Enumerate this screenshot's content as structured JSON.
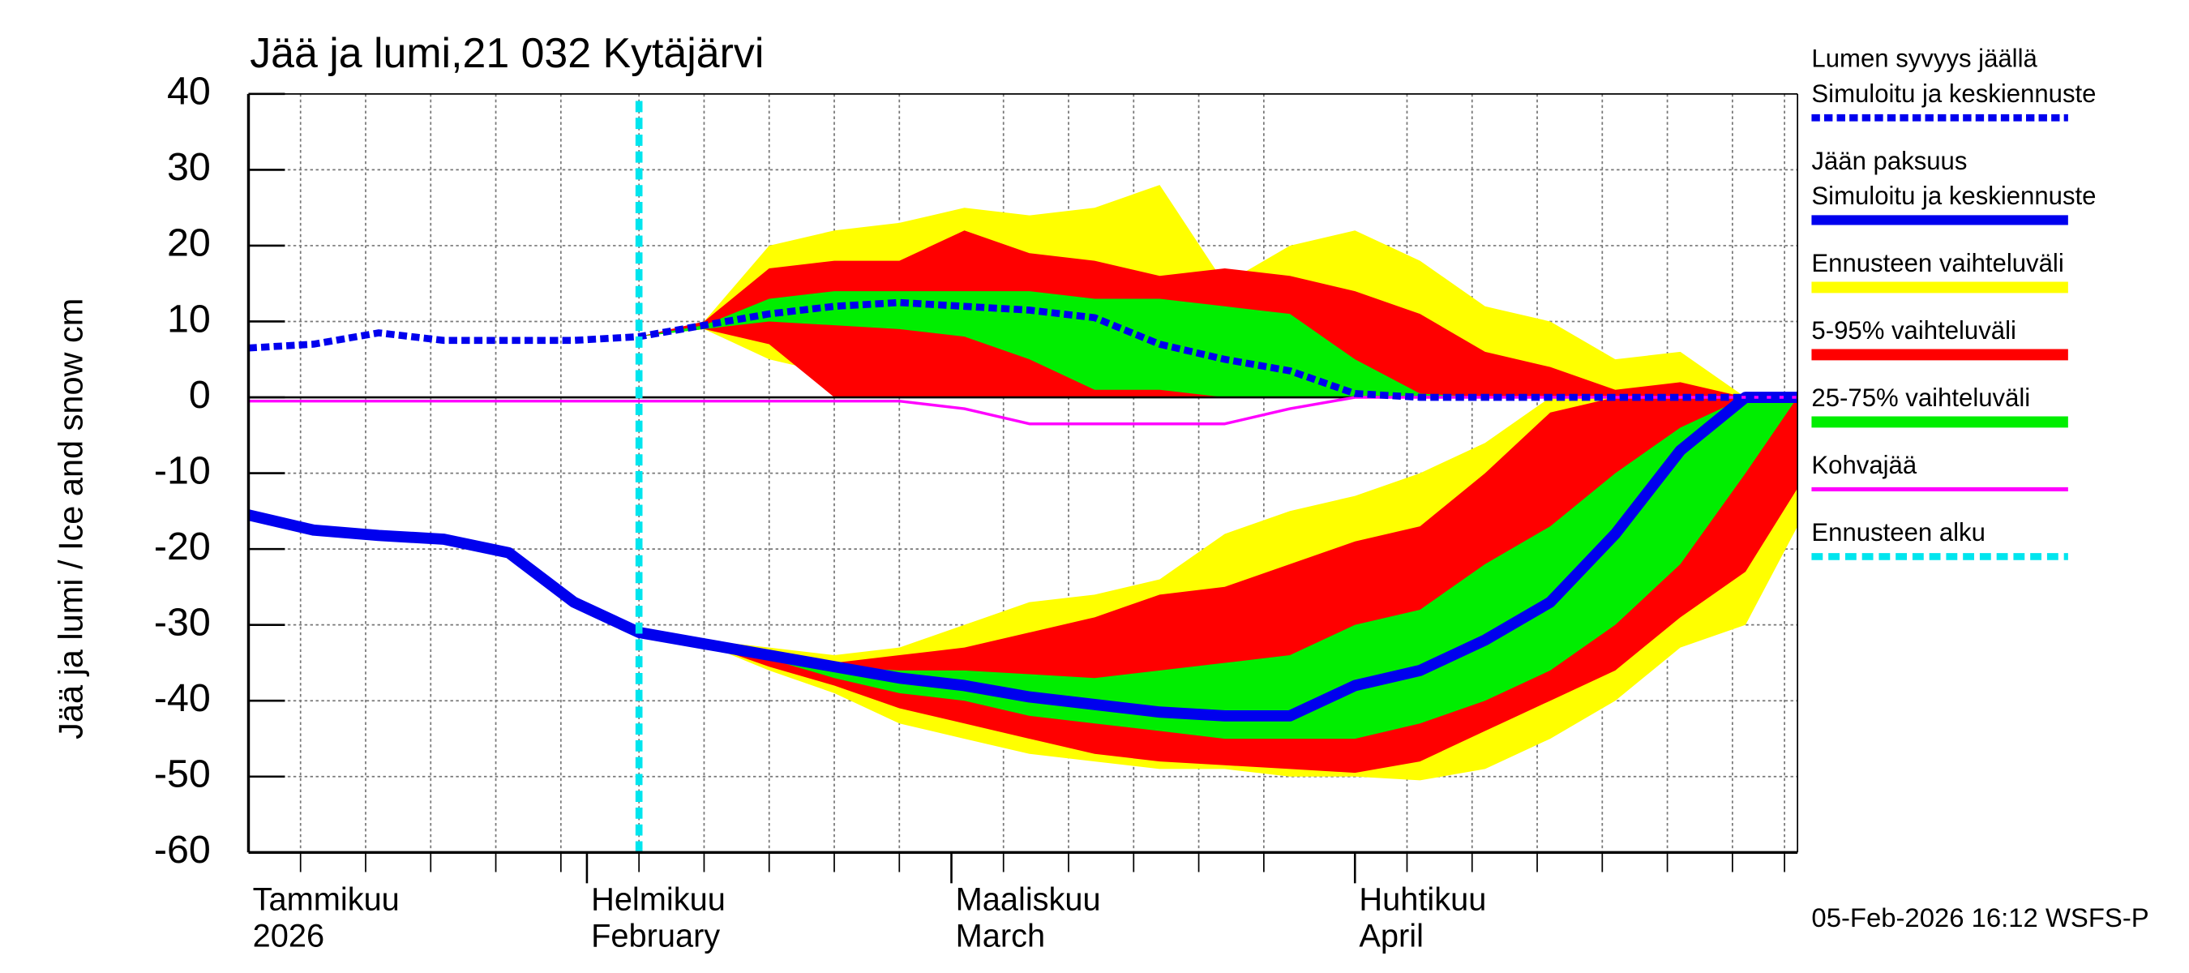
{
  "chart_data": {
    "type": "line",
    "title": "Jää ja lumi,21 032 Kytäjärvi",
    "y_label": "Jää ja lumi / Ice and snow    cm",
    "footer": "05-Feb-2026 16:12 WSFS-P",
    "xlim": [
      "2026-01-06",
      "2026-05-05"
    ],
    "xticks": [
      {
        "value": "2026-01-01",
        "label": [
          "Tammikuu",
          "2026"
        ]
      },
      {
        "value": "2026-02-01",
        "label": [
          "Helmikuu",
          "February"
        ]
      },
      {
        "value": "2026-03-01",
        "label": [
          "Maaliskuu",
          "March"
        ]
      },
      {
        "value": "2026-04-01",
        "label": [
          "Huhtikuu",
          "April"
        ]
      }
    ],
    "x_grid": [
      "2026-01-10",
      "2026-01-15",
      "2026-01-20",
      "2026-01-25",
      "2026-01-30",
      "2026-02-05",
      "2026-02-10",
      "2026-02-15",
      "2026-02-20",
      "2026-02-25",
      "2026-03-05",
      "2026-03-10",
      "2026-03-15",
      "2026-03-20",
      "2026-03-25",
      "2026-04-05",
      "2026-04-10",
      "2026-04-15",
      "2026-04-20",
      "2026-04-25",
      "2026-04-30",
      "2026-05-04"
    ],
    "ylim": [
      -60,
      40
    ],
    "yticks": [
      -60,
      -50,
      -40,
      -30,
      -20,
      -10,
      0,
      10,
      20,
      30,
      40
    ],
    "grid": true,
    "x": [
      "2026-01-06",
      "2026-01-11",
      "2026-01-16",
      "2026-01-21",
      "2026-01-26",
      "2026-01-31",
      "2026-02-05",
      "2026-02-10",
      "2026-02-15",
      "2026-02-20",
      "2026-02-25",
      "2026-03-02",
      "2026-03-07",
      "2026-03-12",
      "2026-03-17",
      "2026-03-22",
      "2026-03-27",
      "2026-04-01",
      "2026-04-06",
      "2026-04-11",
      "2026-04-16",
      "2026-04-21",
      "2026-04-26",
      "2026-05-01",
      "2026-05-05"
    ],
    "series": [
      {
        "name": [
          "Lumen syvyys jäällä",
          "Simuloitu ja keskiennuste"
        ],
        "color": "#0000ee",
        "style": "dashed",
        "values": [
          6.5,
          7,
          8.5,
          7.5,
          7.5,
          7.5,
          8,
          9.5,
          11,
          12,
          12.5,
          12,
          11.5,
          10.5,
          7,
          5,
          3.5,
          0.5,
          0,
          0,
          0,
          0,
          0,
          0,
          0
        ]
      },
      {
        "name": [
          "Jään paksuus",
          "Simuloitu ja keskiennuste"
        ],
        "color": "#0000ee",
        "style": "thick",
        "values": [
          -15.5,
          -17.5,
          -18.2,
          -18.7,
          -20.5,
          -27,
          -31,
          -32.5,
          -34,
          -35.5,
          -37,
          -38,
          -39.5,
          -40.5,
          -41.5,
          -42,
          -42,
          -38,
          -36,
          -32,
          -27,
          -18,
          -7,
          0,
          0
        ]
      },
      {
        "name": [
          "Kohvajää"
        ],
        "color": "#ff00ff",
        "style": "thin",
        "values": [
          -0.5,
          -0.5,
          -0.5,
          -0.5,
          -0.5,
          -0.5,
          -0.5,
          -0.5,
          -0.5,
          -0.5,
          -0.5,
          -1.5,
          -3.5,
          -3.5,
          -3.5,
          -3.5,
          -1.5,
          0,
          0,
          0,
          0,
          0,
          0,
          0,
          0
        ]
      }
    ],
    "bands": [
      {
        "name": "Ennusteen vaihteluväli",
        "color": "#ffff00",
        "snow_high": [
          null,
          null,
          null,
          null,
          null,
          null,
          8,
          10,
          20,
          22,
          23,
          25,
          24,
          25,
          28,
          15,
          20,
          22,
          18,
          12,
          10,
          5,
          6,
          0,
          0
        ],
        "snow_low": [
          null,
          null,
          null,
          null,
          null,
          null,
          8,
          9,
          5,
          3,
          0,
          0,
          0,
          0,
          0,
          0,
          0,
          0,
          0,
          0,
          0,
          0,
          0,
          0,
          0
        ],
        "ice_high": [
          null,
          null,
          null,
          null,
          null,
          null,
          -30.5,
          -32,
          -33,
          -34,
          -33,
          -30,
          -27,
          -26,
          -24,
          -18,
          -15,
          -13,
          -10,
          -6,
          0,
          0,
          0,
          0,
          0
        ],
        "ice_low": [
          null,
          null,
          null,
          null,
          null,
          null,
          -30.5,
          -32.5,
          -36,
          -39,
          -43,
          -45,
          -47,
          -48,
          -49,
          -49,
          -50,
          -50,
          -50.5,
          -49,
          -45,
          -40,
          -33,
          -30,
          -17
        ]
      },
      {
        "name": "5-95% vaihteluväli",
        "color": "#ff0000",
        "snow_high": [
          null,
          null,
          null,
          null,
          null,
          null,
          8,
          10,
          17,
          18,
          18,
          22,
          19,
          18,
          16,
          17,
          16,
          14,
          11,
          6,
          4,
          1,
          2,
          0,
          0
        ],
        "snow_low": [
          null,
          null,
          null,
          null,
          null,
          null,
          8,
          9,
          7,
          0,
          0,
          0,
          0,
          0,
          0,
          0,
          0,
          0,
          0,
          0,
          0,
          0,
          0,
          0,
          0
        ],
        "ice_high": [
          null,
          null,
          null,
          null,
          null,
          null,
          -30.5,
          -32,
          -33.5,
          -35,
          -34,
          -33,
          -31,
          -29,
          -26,
          -25,
          -22,
          -19,
          -17,
          -10,
          -2,
          0,
          0,
          0,
          0
        ],
        "ice_low": [
          null,
          null,
          null,
          null,
          null,
          null,
          -30.5,
          -32.5,
          -35.5,
          -38,
          -41,
          -43,
          -45,
          -47,
          -48,
          -48.5,
          -49,
          -49.5,
          -48,
          -44,
          -40,
          -36,
          -29,
          -23,
          -12
        ]
      },
      {
        "name": "25-75% vaihteluväli",
        "color": "#00ee00",
        "snow_high": [
          null,
          null,
          null,
          null,
          null,
          null,
          8,
          9.5,
          13,
          14,
          14,
          14,
          14,
          13,
          13,
          12,
          11,
          5,
          0.5,
          0,
          0,
          0,
          0,
          0,
          0
        ],
        "snow_low": [
          null,
          null,
          null,
          null,
          null,
          null,
          8,
          9,
          10,
          9.5,
          9,
          8,
          5,
          1,
          1,
          0,
          0,
          0,
          0,
          0,
          0,
          0,
          0,
          0,
          0
        ],
        "ice_high": [
          null,
          null,
          null,
          null,
          null,
          null,
          -30.5,
          -32,
          -33.5,
          -35.5,
          -36,
          -36,
          -36.5,
          -37,
          -36,
          -35,
          -34,
          -30,
          -28,
          -22,
          -17,
          -10,
          -4,
          0,
          0
        ],
        "ice_low": [
          null,
          null,
          null,
          null,
          null,
          null,
          -30.5,
          -32.5,
          -34.5,
          -37,
          -39,
          -40,
          -42,
          -43,
          -44,
          -45,
          -45,
          -45,
          -43,
          -40,
          -36,
          -30,
          -22,
          -10,
          0
        ]
      }
    ],
    "forecast_start": {
      "name": "Ennusteen alku",
      "x": "2026-02-05",
      "color": "#00e5ee"
    }
  }
}
